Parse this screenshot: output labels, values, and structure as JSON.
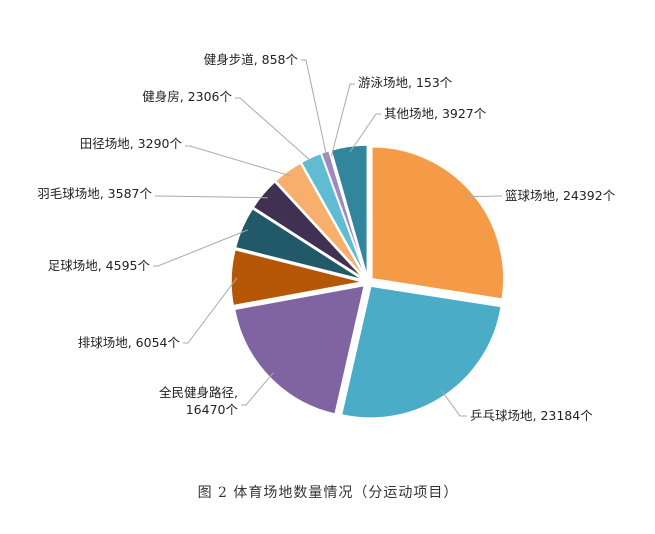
{
  "chart_data": {
    "type": "pie",
    "caption": "图 2 体育场地数量情况（分运动项目）",
    "unit": "个",
    "slices": [
      {
        "name": "篮球场地",
        "value": 24392,
        "color": "#F59A47"
      },
      {
        "name": "乒乓球场地",
        "value": 23184,
        "color": "#4AACC6"
      },
      {
        "name": "全民健身路径",
        "value": 16470,
        "color": "#8064A2"
      },
      {
        "name": "排球场地",
        "value": 6054,
        "color": "#B65708"
      },
      {
        "name": "足球场地",
        "value": 4595,
        "color": "#215968"
      },
      {
        "name": "羽毛球场地",
        "value": 3587,
        "color": "#403152"
      },
      {
        "name": "田径场地",
        "value": 3290,
        "color": "#F8AF6B"
      },
      {
        "name": "健身房",
        "value": 2306,
        "color": "#5FBCD3"
      },
      {
        "name": "健身步道",
        "value": 858,
        "color": "#9E8AC0"
      },
      {
        "name": "游泳场地",
        "value": 153,
        "color": "#C9B6E4"
      },
      {
        "name": "其他场地",
        "value": 3927,
        "color": "#31859C"
      }
    ]
  }
}
